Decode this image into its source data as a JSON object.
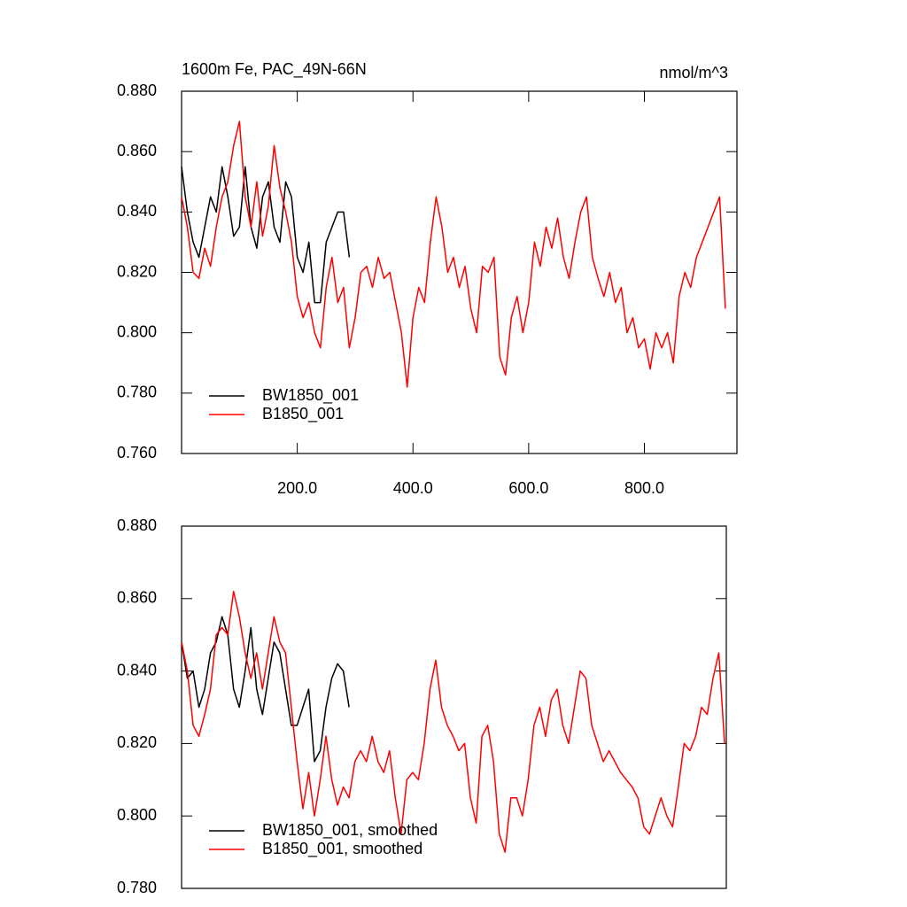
{
  "chart_data": [
    {
      "type": "line",
      "title": "1600m Fe, PAC_49N-66N",
      "units": "nmol/m^3",
      "xlim": [
        0,
        960
      ],
      "xticks": [
        {
          "value": 200,
          "label": "200.0"
        },
        {
          "value": 400,
          "label": "400.0"
        },
        {
          "value": 600,
          "label": "600.0"
        },
        {
          "value": 800,
          "label": "800.0"
        }
      ],
      "ylim": [
        0.76,
        0.88
      ],
      "yticks": [
        {
          "value": 0.76,
          "label": "0.760"
        },
        {
          "value": 0.78,
          "label": "0.780"
        },
        {
          "value": 0.8,
          "label": "0.800"
        },
        {
          "value": 0.82,
          "label": "0.820"
        },
        {
          "value": 0.84,
          "label": "0.840"
        },
        {
          "value": 0.86,
          "label": "0.860"
        },
        {
          "value": 0.88,
          "label": "0.880"
        }
      ],
      "legend": "lower left",
      "series": [
        {
          "name": "BW1850_001",
          "color": "#000000",
          "x": [
            0,
            10,
            20,
            30,
            40,
            50,
            60,
            70,
            80,
            90,
            100,
            110,
            120,
            130,
            140,
            150,
            160,
            170,
            180,
            190,
            200,
            210,
            220,
            230,
            240,
            250,
            260,
            270,
            280,
            290
          ],
          "values": [
            0.855,
            0.84,
            0.83,
            0.825,
            0.835,
            0.845,
            0.84,
            0.855,
            0.845,
            0.832,
            0.835,
            0.855,
            0.835,
            0.828,
            0.845,
            0.85,
            0.835,
            0.83,
            0.85,
            0.845,
            0.825,
            0.82,
            0.83,
            0.81,
            0.81,
            0.83,
            0.835,
            0.84,
            0.84,
            0.825
          ]
        },
        {
          "name": "B1850_001",
          "color": "#ff0000",
          "x": [
            0,
            10,
            20,
            30,
            40,
            50,
            60,
            70,
            80,
            90,
            100,
            110,
            120,
            130,
            140,
            150,
            160,
            170,
            180,
            190,
            200,
            210,
            220,
            230,
            240,
            250,
            260,
            270,
            280,
            290,
            300,
            310,
            320,
            330,
            340,
            350,
            360,
            370,
            380,
            390,
            400,
            410,
            420,
            430,
            440,
            450,
            460,
            470,
            480,
            490,
            500,
            510,
            520,
            530,
            540,
            550,
            560,
            570,
            580,
            590,
            600,
            610,
            620,
            630,
            640,
            650,
            660,
            670,
            680,
            690,
            700,
            710,
            720,
            730,
            740,
            750,
            760,
            770,
            780,
            790,
            800,
            810,
            820,
            830,
            840,
            850,
            860,
            870,
            880,
            890,
            900,
            910,
            920,
            930,
            940
          ],
          "values": [
            0.845,
            0.835,
            0.82,
            0.818,
            0.828,
            0.822,
            0.835,
            0.845,
            0.85,
            0.862,
            0.87,
            0.845,
            0.835,
            0.85,
            0.832,
            0.842,
            0.862,
            0.848,
            0.84,
            0.83,
            0.812,
            0.805,
            0.81,
            0.8,
            0.795,
            0.815,
            0.825,
            0.81,
            0.815,
            0.795,
            0.805,
            0.82,
            0.822,
            0.815,
            0.825,
            0.818,
            0.82,
            0.81,
            0.8,
            0.782,
            0.805,
            0.815,
            0.81,
            0.83,
            0.845,
            0.835,
            0.82,
            0.825,
            0.815,
            0.822,
            0.808,
            0.8,
            0.822,
            0.82,
            0.825,
            0.792,
            0.786,
            0.805,
            0.812,
            0.8,
            0.81,
            0.83,
            0.822,
            0.835,
            0.828,
            0.838,
            0.825,
            0.818,
            0.83,
            0.84,
            0.845,
            0.825,
            0.818,
            0.812,
            0.82,
            0.81,
            0.815,
            0.8,
            0.805,
            0.795,
            0.798,
            0.788,
            0.8,
            0.795,
            0.8,
            0.79,
            0.812,
            0.82,
            0.815,
            0.825,
            0.83,
            0.835,
            0.84,
            0.845,
            0.808
          ]
        }
      ]
    },
    {
      "type": "line",
      "xlim": [
        0,
        943
      ],
      "ylim": [
        0.78,
        0.88
      ],
      "yticks": [
        {
          "value": 0.78,
          "label": "0.780"
        },
        {
          "value": 0.8,
          "label": "0.800"
        },
        {
          "value": 0.82,
          "label": "0.820"
        },
        {
          "value": 0.84,
          "label": "0.840"
        },
        {
          "value": 0.86,
          "label": "0.860"
        },
        {
          "value": 0.88,
          "label": "0.880"
        }
      ],
      "legend": "lower left",
      "series": [
        {
          "name": "BW1850_001, smoothed",
          "color": "#000000",
          "x": [
            0,
            10,
            20,
            30,
            40,
            50,
            60,
            70,
            80,
            90,
            100,
            110,
            120,
            130,
            140,
            150,
            160,
            170,
            180,
            190,
            200,
            210,
            220,
            230,
            240,
            250,
            260,
            270,
            280,
            290
          ],
          "values": [
            0.848,
            0.838,
            0.84,
            0.83,
            0.835,
            0.845,
            0.848,
            0.855,
            0.85,
            0.835,
            0.83,
            0.84,
            0.852,
            0.835,
            0.828,
            0.838,
            0.848,
            0.845,
            0.835,
            0.825,
            0.825,
            0.83,
            0.835,
            0.815,
            0.818,
            0.83,
            0.838,
            0.842,
            0.84,
            0.83
          ]
        },
        {
          "name": "B1850_001, smoothed",
          "color": "#ff0000",
          "x": [
            0,
            10,
            20,
            30,
            40,
            50,
            60,
            70,
            80,
            90,
            100,
            110,
            120,
            130,
            140,
            150,
            160,
            170,
            180,
            190,
            200,
            210,
            220,
            230,
            240,
            250,
            260,
            270,
            280,
            290,
            300,
            310,
            320,
            330,
            340,
            350,
            360,
            370,
            380,
            390,
            400,
            410,
            420,
            430,
            440,
            450,
            460,
            470,
            480,
            490,
            500,
            510,
            520,
            530,
            540,
            550,
            560,
            570,
            580,
            590,
            600,
            610,
            620,
            630,
            640,
            650,
            660,
            670,
            680,
            690,
            700,
            710,
            720,
            730,
            740,
            750,
            760,
            770,
            780,
            790,
            800,
            810,
            820,
            830,
            840,
            850,
            860,
            870,
            880,
            890,
            900,
            910,
            920,
            930,
            940
          ],
          "values": [
            0.848,
            0.84,
            0.825,
            0.822,
            0.828,
            0.835,
            0.85,
            0.852,
            0.85,
            0.862,
            0.855,
            0.845,
            0.838,
            0.845,
            0.835,
            0.845,
            0.855,
            0.848,
            0.845,
            0.83,
            0.815,
            0.802,
            0.812,
            0.8,
            0.81,
            0.822,
            0.81,
            0.803,
            0.808,
            0.805,
            0.815,
            0.818,
            0.815,
            0.822,
            0.815,
            0.812,
            0.818,
            0.805,
            0.795,
            0.81,
            0.812,
            0.81,
            0.82,
            0.835,
            0.843,
            0.83,
            0.825,
            0.822,
            0.818,
            0.82,
            0.805,
            0.798,
            0.822,
            0.825,
            0.815,
            0.795,
            0.79,
            0.805,
            0.805,
            0.8,
            0.81,
            0.825,
            0.83,
            0.822,
            0.832,
            0.835,
            0.825,
            0.82,
            0.83,
            0.84,
            0.838,
            0.825,
            0.82,
            0.815,
            0.818,
            0.815,
            0.812,
            0.81,
            0.808,
            0.805,
            0.797,
            0.795,
            0.8,
            0.805,
            0.8,
            0.797,
            0.808,
            0.82,
            0.818,
            0.822,
            0.83,
            0.828,
            0.838,
            0.845,
            0.82
          ]
        }
      ]
    }
  ]
}
